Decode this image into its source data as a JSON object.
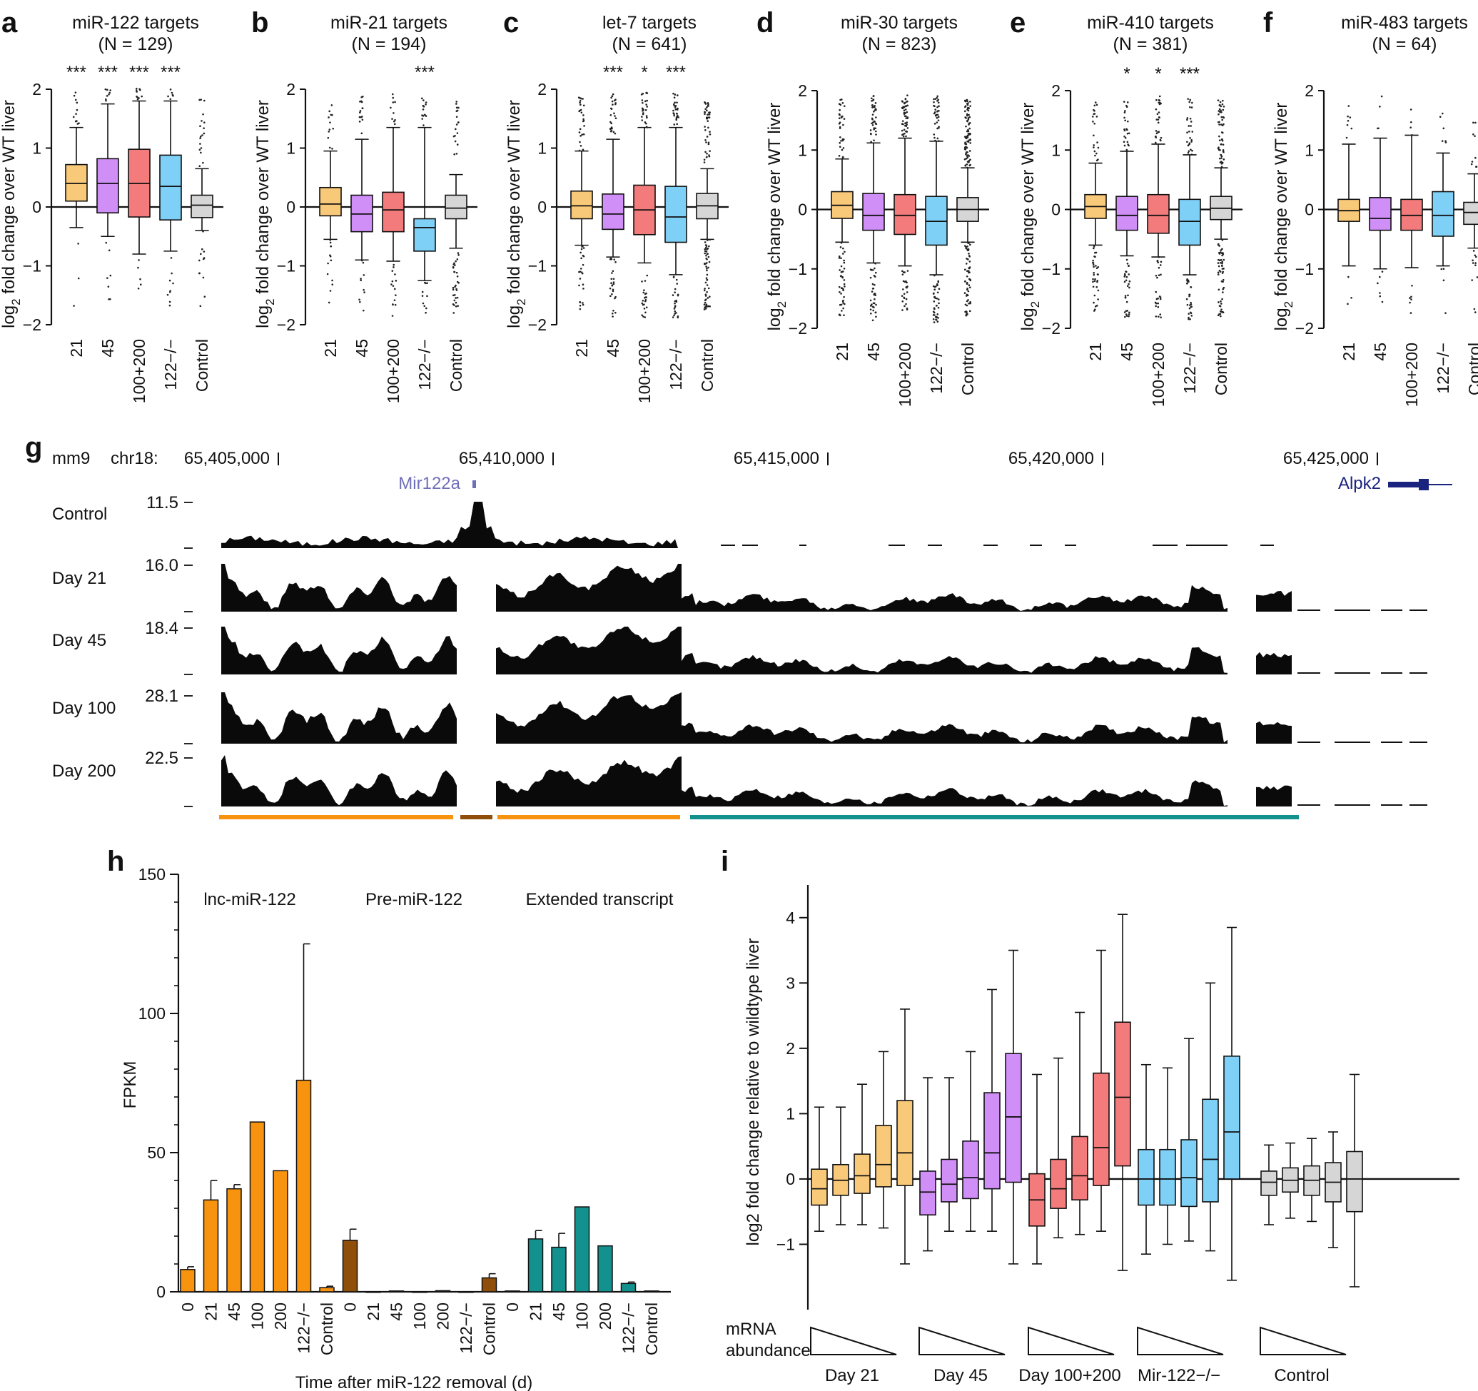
{
  "colors": {
    "yellow": "#f9c97a",
    "purple": "#d08ef7",
    "red": "#f47b7b",
    "blue": "#7fd0f7",
    "grey": "#d6d6d6",
    "orange": "#f7930f",
    "brown": "#8f4f0b",
    "teal": "#12918e",
    "gene": "#1a237e",
    "mir": "#6f6fb8"
  },
  "chart_data": [
    {
      "panel": "a",
      "type": "box",
      "title": "miR-122 targets",
      "n_label": "(N = 129)",
      "ylabel": "log2 fold change over WT liver",
      "ylim": [
        -2,
        2
      ],
      "yticks": [
        "2",
        "1",
        "0",
        "−1",
        "−2"
      ],
      "categories": [
        "21",
        "45",
        "100+200",
        "122−/−",
        "Control"
      ],
      "significance": [
        "***",
        "***",
        "***",
        "***",
        ""
      ],
      "boxes": [
        {
          "min": -0.35,
          "q1": 0.1,
          "median": 0.4,
          "q3": 0.72,
          "max": 1.35
        },
        {
          "min": -0.5,
          "q1": -0.1,
          "median": 0.4,
          "q3": 0.82,
          "max": 1.75
        },
        {
          "min": -0.8,
          "q1": -0.17,
          "median": 0.4,
          "q3": 0.98,
          "max": 1.8
        },
        {
          "min": -0.75,
          "q1": -0.22,
          "median": 0.35,
          "q3": 0.88,
          "max": 1.8
        },
        {
          "min": -0.4,
          "q1": -0.18,
          "median": 0.03,
          "q3": 0.2,
          "max": 0.65
        }
      ]
    },
    {
      "panel": "b",
      "type": "box",
      "title": "miR-21 targets",
      "n_label": "(N = 194)",
      "ylabel": "log2 fold change over WT liver",
      "ylim": [
        -2,
        2
      ],
      "yticks": [
        "2",
        "1",
        "0",
        "−1",
        "−2"
      ],
      "categories": [
        "21",
        "45",
        "100+200",
        "122−/−",
        "Control"
      ],
      "significance": [
        "",
        "",
        "",
        "***",
        ""
      ],
      "boxes": [
        {
          "min": -0.55,
          "q1": -0.15,
          "median": 0.05,
          "q3": 0.33,
          "max": 0.95
        },
        {
          "min": -0.9,
          "q1": -0.42,
          "median": -0.12,
          "q3": 0.2,
          "max": 1.15
        },
        {
          "min": -0.92,
          "q1": -0.42,
          "median": -0.05,
          "q3": 0.25,
          "max": 1.35
        },
        {
          "min": -1.25,
          "q1": -0.75,
          "median": -0.35,
          "q3": -0.2,
          "max": 1.35
        },
        {
          "min": -0.7,
          "q1": -0.2,
          "median": -0.02,
          "q3": 0.2,
          "max": 0.55
        }
      ]
    },
    {
      "panel": "c",
      "type": "box",
      "title": "let-7 targets",
      "n_label": "(N = 641)",
      "ylabel": "log2 fold change over WT liver",
      "ylim": [
        -2,
        2
      ],
      "yticks": [
        "2",
        "1",
        "0",
        "−1",
        "−2"
      ],
      "categories": [
        "21",
        "45",
        "100+200",
        "122−/−",
        "Control"
      ],
      "significance": [
        "",
        "***",
        "*",
        "***",
        ""
      ],
      "boxes": [
        {
          "min": -0.65,
          "q1": -0.2,
          "median": 0.02,
          "q3": 0.27,
          "max": 0.95
        },
        {
          "min": -0.85,
          "q1": -0.38,
          "median": -0.12,
          "q3": 0.22,
          "max": 1.15
        },
        {
          "min": -0.95,
          "q1": -0.47,
          "median": -0.05,
          "q3": 0.37,
          "max": 1.35
        },
        {
          "min": -1.15,
          "q1": -0.6,
          "median": -0.17,
          "q3": 0.35,
          "max": 1.35
        },
        {
          "min": -0.55,
          "q1": -0.2,
          "median": 0.02,
          "q3": 0.23,
          "max": 0.65
        }
      ]
    },
    {
      "panel": "d",
      "type": "box",
      "title": "miR-30 targets",
      "n_label": "(N = 823)",
      "ylabel": "log2 fold change over WT liver",
      "ylim": [
        -2,
        2
      ],
      "yticks": [
        "2",
        "1",
        "0",
        "−1",
        "−2"
      ],
      "categories": [
        "21",
        "45",
        "100+200",
        "122−/−",
        "Control"
      ],
      "significance": [
        "",
        "",
        "",
        "",
        ""
      ],
      "boxes": [
        {
          "min": -0.55,
          "q1": -0.15,
          "median": 0.07,
          "q3": 0.3,
          "max": 0.85
        },
        {
          "min": -0.9,
          "q1": -0.35,
          "median": -0.1,
          "q3": 0.27,
          "max": 1.12
        },
        {
          "min": -0.95,
          "q1": -0.42,
          "median": -0.1,
          "q3": 0.25,
          "max": 1.2
        },
        {
          "min": -1.1,
          "q1": -0.6,
          "median": -0.2,
          "q3": 0.22,
          "max": 1.15
        },
        {
          "min": -0.55,
          "q1": -0.2,
          "median": 0.0,
          "q3": 0.2,
          "max": 0.7
        }
      ]
    },
    {
      "panel": "e",
      "type": "box",
      "title": "miR-410 targets",
      "n_label": "(N = 381)",
      "ylabel": "log2 fold change over WT liver",
      "ylim": [
        -2,
        2
      ],
      "yticks": [
        "2",
        "1",
        "0",
        "−1",
        "−2"
      ],
      "categories": [
        "21",
        "45",
        "100+200",
        "122−/−",
        "Control"
      ],
      "significance": [
        "",
        "*",
        "*",
        "***",
        ""
      ],
      "boxes": [
        {
          "min": -0.6,
          "q1": -0.15,
          "median": 0.05,
          "q3": 0.25,
          "max": 0.78
        },
        {
          "min": -0.78,
          "q1": -0.35,
          "median": -0.1,
          "q3": 0.22,
          "max": 0.98
        },
        {
          "min": -0.8,
          "q1": -0.4,
          "median": -0.1,
          "q3": 0.25,
          "max": 1.1
        },
        {
          "min": -1.1,
          "q1": -0.6,
          "median": -0.2,
          "q3": 0.17,
          "max": 0.92
        },
        {
          "min": -0.5,
          "q1": -0.17,
          "median": 0.02,
          "q3": 0.22,
          "max": 0.7
        }
      ]
    },
    {
      "panel": "f",
      "type": "box",
      "title": "miR-483 targets",
      "n_label": "(N = 64)",
      "ylabel": "log2 fold change over WT liver",
      "ylim": [
        -2,
        2
      ],
      "yticks": [
        "2",
        "1",
        "0",
        "−1",
        "−2"
      ],
      "categories": [
        "21",
        "45",
        "100+200",
        "122−/−",
        "Control"
      ],
      "significance": [
        "",
        "",
        "",
        "",
        ""
      ],
      "boxes": [
        {
          "min": -0.95,
          "q1": -0.2,
          "median": -0.02,
          "q3": 0.17,
          "max": 1.1
        },
        {
          "min": -1.0,
          "q1": -0.35,
          "median": -0.15,
          "q3": 0.2,
          "max": 1.2
        },
        {
          "min": -0.98,
          "q1": -0.35,
          "median": -0.1,
          "q3": 0.17,
          "max": 1.25
        },
        {
          "min": -0.95,
          "q1": -0.45,
          "median": -0.1,
          "q3": 0.3,
          "max": 0.95
        },
        {
          "min": -0.65,
          "q1": -0.25,
          "median": -0.05,
          "q3": 0.12,
          "max": 0.6
        }
      ]
    },
    {
      "panel": "g",
      "type": "area",
      "assembly": "mm9",
      "chrom": "chr18:",
      "coord_labels": [
        "65,405,000",
        "65,410,000",
        "65,415,000",
        "65,420,000",
        "65,425,000"
      ],
      "gene_labels": {
        "mir": "Mir122a",
        "alpk2": "Alpk2"
      },
      "tracks": [
        {
          "label": "Control",
          "max": "11.5"
        },
        {
          "label": "Day 21",
          "max": "16.0"
        },
        {
          "label": "Day 45",
          "max": "18.4"
        },
        {
          "label": "Day 100",
          "max": "28.1"
        },
        {
          "label": "Day 200",
          "max": "22.5"
        }
      ]
    },
    {
      "panel": "h",
      "type": "bar",
      "ylabel": "FPKM",
      "xlabel": "Time after miR-122 removal (d)",
      "ylim": [
        0,
        150
      ],
      "yticks": [
        "0",
        "50",
        "100",
        "150"
      ],
      "group_labels": [
        "lnc-miR-122",
        "Pre-miR-122",
        "Extended transcript"
      ],
      "categories": [
        "0",
        "21",
        "45",
        "100",
        "200",
        "122−/−",
        "Control"
      ],
      "series": [
        {
          "name": "lnc-miR-122",
          "values": [
            8,
            33,
            37,
            61,
            43.5,
            76,
            1.5
          ],
          "errors": [
            1,
            7,
            1.5,
            0,
            0,
            49,
            0.5
          ]
        },
        {
          "name": "Pre-miR-122",
          "values": [
            18.5,
            0,
            0.3,
            0,
            0.4,
            0,
            5
          ],
          "errors": [
            4,
            0,
            0,
            0,
            0,
            0,
            1.5
          ]
        },
        {
          "name": "Extended transcript",
          "values": [
            0.3,
            19,
            16,
            30.5,
            16.5,
            3,
            0.3
          ],
          "errors": [
            0,
            3,
            5,
            0,
            0,
            0.5,
            0
          ]
        }
      ]
    },
    {
      "panel": "i",
      "type": "box",
      "ylabel": "log2 fold change relative to wildtype liver",
      "ylim": [
        -2,
        4.5
      ],
      "yticks": [
        "4",
        "3",
        "2",
        "1",
        "0",
        "−1"
      ],
      "abundance_label": [
        "mRNA",
        "abundance"
      ],
      "groups": [
        {
          "name": "Day 21",
          "boxes": [
            {
              "min": -0.8,
              "q1": -0.4,
              "median": -0.15,
              "q3": 0.15,
              "max": 1.1
            },
            {
              "min": -0.7,
              "q1": -0.25,
              "median": -0.02,
              "q3": 0.22,
              "max": 1.1
            },
            {
              "min": -0.7,
              "q1": -0.22,
              "median": 0.05,
              "q3": 0.38,
              "max": 1.45
            },
            {
              "min": -0.75,
              "q1": -0.12,
              "median": 0.22,
              "q3": 0.82,
              "max": 1.95
            },
            {
              "min": -1.3,
              "q1": -0.1,
              "median": 0.4,
              "q3": 1.2,
              "max": 2.6
            }
          ]
        },
        {
          "name": "Day 45",
          "boxes": [
            {
              "min": -1.1,
              "q1": -0.55,
              "median": -0.2,
              "q3": 0.12,
              "max": 1.55
            },
            {
              "min": -0.8,
              "q1": -0.35,
              "median": -0.08,
              "q3": 0.3,
              "max": 1.55
            },
            {
              "min": -0.8,
              "q1": -0.3,
              "median": 0.02,
              "q3": 0.58,
              "max": 1.95
            },
            {
              "min": -0.8,
              "q1": -0.15,
              "median": 0.4,
              "q3": 1.32,
              "max": 2.9
            },
            {
              "min": -1.3,
              "q1": -0.05,
              "median": 0.95,
              "q3": 1.92,
              "max": 3.5
            }
          ]
        },
        {
          "name": "Day 100+200",
          "boxes": [
            {
              "min": -1.3,
              "q1": -0.72,
              "median": -0.32,
              "q3": 0.08,
              "max": 1.6
            },
            {
              "min": -0.9,
              "q1": -0.45,
              "median": -0.15,
              "q3": 0.3,
              "max": 1.85
            },
            {
              "min": -0.85,
              "q1": -0.32,
              "median": 0.05,
              "q3": 0.65,
              "max": 2.55
            },
            {
              "min": -0.8,
              "q1": -0.1,
              "median": 0.48,
              "q3": 1.62,
              "max": 3.5
            },
            {
              "min": -1.4,
              "q1": 0.2,
              "median": 1.25,
              "q3": 2.4,
              "max": 4.05
            }
          ]
        },
        {
          "name": "Mir-122−/−",
          "boxes": [
            {
              "min": -1.15,
              "q1": -0.4,
              "median": 0.0,
              "q3": 0.45,
              "max": 1.75
            },
            {
              "min": -1.0,
              "q1": -0.4,
              "median": 0.0,
              "q3": 0.45,
              "max": 1.7
            },
            {
              "min": -0.95,
              "q1": -0.42,
              "median": 0.02,
              "q3": 0.6,
              "max": 2.15
            },
            {
              "min": -1.1,
              "q1": -0.35,
              "median": 0.3,
              "q3": 1.22,
              "max": 3.0
            },
            {
              "min": -1.55,
              "q1": 0.0,
              "median": 0.72,
              "q3": 1.88,
              "max": 3.85
            }
          ]
        },
        {
          "name": "Control",
          "boxes": [
            {
              "min": -0.7,
              "q1": -0.25,
              "median": -0.05,
              "q3": 0.12,
              "max": 0.52
            },
            {
              "min": -0.6,
              "q1": -0.2,
              "median": -0.02,
              "q3": 0.17,
              "max": 0.55
            },
            {
              "min": -0.65,
              "q1": -0.25,
              "median": -0.02,
              "q3": 0.2,
              "max": 0.62
            },
            {
              "min": -1.05,
              "q1": -0.35,
              "median": -0.05,
              "q3": 0.25,
              "max": 0.72
            },
            {
              "min": -1.65,
              "q1": -0.5,
              "median": 0.0,
              "q3": 0.42,
              "max": 1.6
            }
          ]
        }
      ]
    }
  ]
}
